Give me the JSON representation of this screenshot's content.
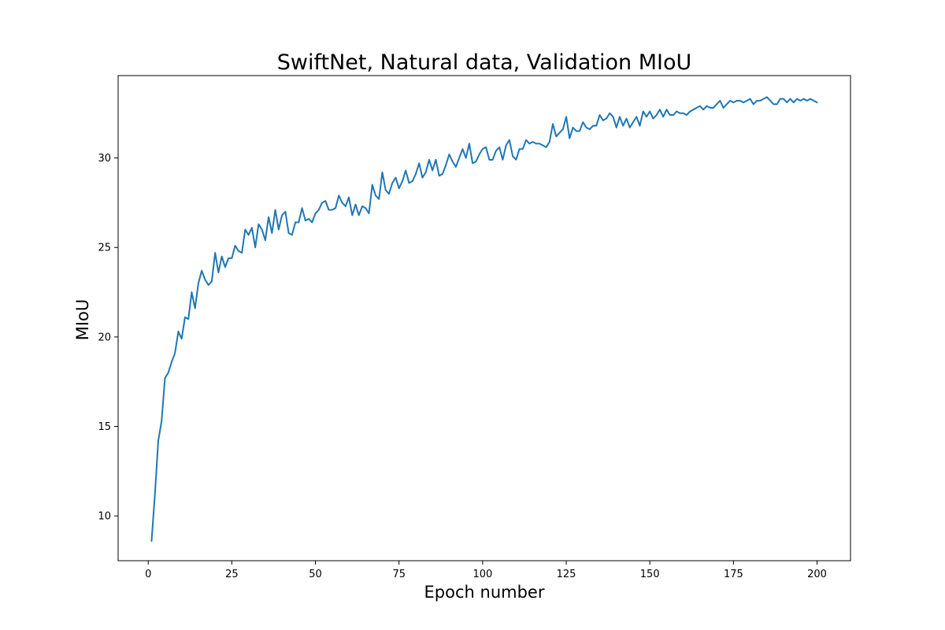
{
  "chart_data": {
    "type": "line",
    "title": "SwiftNet, Natural data, Validation MIoU",
    "xlabel": "Epoch number",
    "ylabel": "MIoU",
    "xlim": [
      -9,
      210
    ],
    "ylim": [
      7.5,
      34.6
    ],
    "xticks": [
      0,
      25,
      50,
      75,
      100,
      125,
      150,
      175,
      200
    ],
    "yticks": [
      10,
      15,
      20,
      25,
      30
    ],
    "grid": false,
    "line_color": "#1f77b4",
    "series": [
      {
        "x": [
          1,
          2,
          3,
          4,
          5,
          6,
          7,
          8,
          9,
          10,
          11,
          12,
          13,
          14,
          15,
          16,
          17,
          18,
          19,
          20,
          21,
          22,
          23,
          24,
          25,
          26,
          27,
          28,
          29,
          30,
          31,
          32,
          33,
          34,
          35,
          36,
          37,
          38,
          39,
          40,
          41,
          42,
          43,
          44,
          45,
          46,
          47,
          48,
          49,
          50,
          51,
          52,
          53,
          54,
          55,
          56,
          57,
          58,
          59,
          60,
          61,
          62,
          63,
          64,
          65,
          66,
          67,
          68,
          69,
          70,
          71,
          72,
          73,
          74,
          75,
          76,
          77,
          78,
          79,
          80,
          81,
          82,
          83,
          84,
          85,
          86,
          87,
          88,
          89,
          90,
          91,
          92,
          93,
          94,
          95,
          96,
          97,
          98,
          99,
          100,
          101,
          102,
          103,
          104,
          105,
          106,
          107,
          108,
          109,
          110,
          111,
          112,
          113,
          114,
          115,
          116,
          117,
          118,
          119,
          120,
          121,
          122,
          123,
          124,
          125,
          126,
          127,
          128,
          129,
          130,
          131,
          132,
          133,
          134,
          135,
          136,
          137,
          138,
          139,
          140,
          141,
          142,
          143,
          144,
          145,
          146,
          147,
          148,
          149,
          150,
          151,
          152,
          153,
          154,
          155,
          156,
          157,
          158,
          159,
          160,
          161,
          162,
          163,
          164,
          165,
          166,
          167,
          168,
          169,
          170,
          171,
          172,
          173,
          174,
          175,
          176,
          177,
          178,
          179,
          180,
          181,
          182,
          183,
          184,
          185,
          186,
          187,
          188,
          189,
          190,
          191,
          192,
          193,
          194,
          195,
          196,
          197,
          198,
          199,
          200
        ],
        "values": [
          8.6,
          11.2,
          14.2,
          15.3,
          17.7,
          18.0,
          18.6,
          19.1,
          20.3,
          19.9,
          21.1,
          21.0,
          22.5,
          21.6,
          23.0,
          23.7,
          23.2,
          22.9,
          23.1,
          24.7,
          23.6,
          24.5,
          23.9,
          24.4,
          24.4,
          25.1,
          24.8,
          24.7,
          26.0,
          25.7,
          26.1,
          25.0,
          26.3,
          26.0,
          25.4,
          26.7,
          25.8,
          27.1,
          26.0,
          26.8,
          27.0,
          25.8,
          25.7,
          26.4,
          26.4,
          27.2,
          26.5,
          26.6,
          26.4,
          26.9,
          27.1,
          27.5,
          27.6,
          27.1,
          27.1,
          27.2,
          27.9,
          27.5,
          27.3,
          27.8,
          26.8,
          27.4,
          26.8,
          27.3,
          27.2,
          26.9,
          28.5,
          27.9,
          27.7,
          29.2,
          28.2,
          28.0,
          28.6,
          28.9,
          28.3,
          28.7,
          29.3,
          28.6,
          28.7,
          29.1,
          29.7,
          28.9,
          29.2,
          29.9,
          29.3,
          29.9,
          29.0,
          29.1,
          29.6,
          30.2,
          29.8,
          29.5,
          30.0,
          30.5,
          30.0,
          30.8,
          29.7,
          29.8,
          30.2,
          30.5,
          30.6,
          29.9,
          29.9,
          30.4,
          30.6,
          29.9,
          30.7,
          31.0,
          30.1,
          29.9,
          30.5,
          30.5,
          31.0,
          30.8,
          30.9,
          30.8,
          30.8,
          30.7,
          30.6,
          30.9,
          31.9,
          31.2,
          31.4,
          31.6,
          32.3,
          31.1,
          31.7,
          31.5,
          31.5,
          32.0,
          31.7,
          31.6,
          31.8,
          31.8,
          32.4,
          32.1,
          32.2,
          32.5,
          32.3,
          31.7,
          32.3,
          31.8,
          32.2,
          31.7,
          32.0,
          32.3,
          31.8,
          32.6,
          32.3,
          32.6,
          32.2,
          32.4,
          32.7,
          32.3,
          32.7,
          32.4,
          32.4,
          32.6,
          32.5,
          32.5,
          32.4,
          32.6,
          32.7,
          32.8,
          32.9,
          32.7,
          32.9,
          32.8,
          32.8,
          33.0,
          33.2,
          32.8,
          33.0,
          33.2,
          33.1,
          33.2,
          33.2,
          33.1,
          33.2,
          33.3,
          33.0,
          33.2,
          33.2,
          33.3,
          33.4,
          33.2,
          33.0,
          33.0,
          33.3,
          33.3,
          33.1,
          33.3,
          33.1,
          33.3,
          33.2,
          33.3,
          33.2,
          33.3,
          33.2,
          33.1
        ]
      }
    ]
  }
}
